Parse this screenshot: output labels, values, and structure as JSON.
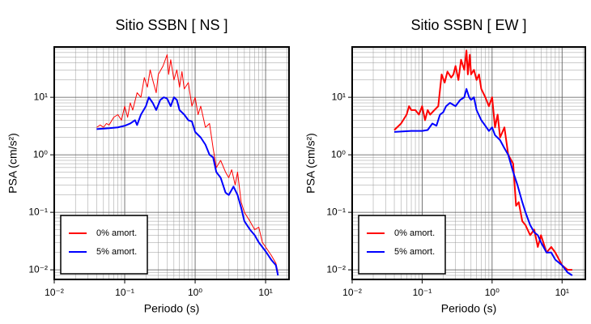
{
  "chart_data": [
    {
      "type": "line",
      "title": "Sitio SSBN [ NS ]",
      "x_label": "Periodo (s)",
      "y_label": "PSA (cm/s²)",
      "log_x": true,
      "log_y": true,
      "grid": true,
      "legend": "lower left",
      "xlim": [
        0.01,
        21.5
      ],
      "ylim": [
        0.0068,
        75
      ],
      "xticks": [
        {
          "value": 0.01,
          "label": "10⁻²"
        },
        {
          "value": 0.1,
          "label": "10⁻¹"
        },
        {
          "value": 1,
          "label": "10⁰"
        },
        {
          "value": 10,
          "label": "10¹"
        }
      ],
      "yticks": [
        {
          "value": 0.01,
          "label": "10⁻²"
        },
        {
          "value": 0.1,
          "label": "10⁻¹"
        },
        {
          "value": 1,
          "label": "10⁰"
        },
        {
          "value": 10,
          "label": "10¹"
        }
      ],
      "series": [
        {
          "name": "0% amort.",
          "color": "#ff0000",
          "line_width": 1,
          "x": [
            0.04,
            0.045,
            0.05,
            0.055,
            0.06,
            0.07,
            0.08,
            0.09,
            0.1,
            0.11,
            0.12,
            0.13,
            0.15,
            0.17,
            0.19,
            0.21,
            0.23,
            0.25,
            0.28,
            0.3,
            0.35,
            0.4,
            0.42,
            0.45,
            0.5,
            0.55,
            0.6,
            0.65,
            0.7,
            0.8,
            0.9,
            1.0,
            1.1,
            1.2,
            1.4,
            1.6,
            1.8,
            2.0,
            2.3,
            2.7,
            3.0,
            3.3,
            3.7,
            4.0,
            4.5,
            5.0,
            6,
            7,
            8,
            9,
            10,
            12,
            14,
            15
          ],
          "values": [
            3.0,
            3.3,
            3.0,
            3.5,
            3.3,
            4.5,
            5,
            4,
            7,
            4.5,
            8,
            6,
            12,
            10,
            22,
            15,
            30,
            20,
            12,
            25,
            35,
            55,
            25,
            45,
            20,
            30,
            15,
            28,
            14,
            18,
            7,
            10,
            5,
            7,
            3,
            3.5,
            1.3,
            0.6,
            0.8,
            0.5,
            0.4,
            0.55,
            0.3,
            0.5,
            0.15,
            0.1,
            0.07,
            0.05,
            0.055,
            0.03,
            0.025,
            0.018,
            0.013,
            0.009
          ]
        },
        {
          "name": "5% amort.",
          "color": "#0000ff",
          "line_width": 2,
          "x": [
            0.04,
            0.06,
            0.08,
            0.1,
            0.12,
            0.14,
            0.15,
            0.17,
            0.2,
            0.22,
            0.25,
            0.28,
            0.32,
            0.36,
            0.4,
            0.45,
            0.5,
            0.55,
            0.6,
            0.7,
            0.8,
            0.9,
            1.0,
            1.2,
            1.4,
            1.6,
            1.8,
            2.0,
            2.3,
            2.7,
            3.0,
            3.5,
            4,
            4.5,
            5,
            6,
            7,
            8,
            10,
            12,
            14,
            15
          ],
          "values": [
            2.8,
            2.9,
            3.0,
            3.2,
            3.5,
            4,
            3.3,
            5,
            7,
            10,
            8,
            6,
            9,
            10,
            9.5,
            7,
            10,
            9,
            6,
            5,
            4,
            3.8,
            2.5,
            2,
            1.5,
            1.0,
            0.9,
            0.5,
            0.4,
            0.22,
            0.2,
            0.28,
            0.2,
            0.12,
            0.07,
            0.05,
            0.04,
            0.03,
            0.021,
            0.015,
            0.012,
            0.008
          ]
        }
      ]
    },
    {
      "type": "line",
      "title": "Sitio SSBN [ EW ]",
      "x_label": "Periodo (s)",
      "y_label": "PSA (cm/s²)",
      "log_x": true,
      "log_y": true,
      "grid": true,
      "legend": "lower left",
      "xlim": [
        0.01,
        21.5
      ],
      "ylim": [
        0.0068,
        75
      ],
      "xticks": [
        {
          "value": 0.01,
          "label": "10⁻²"
        },
        {
          "value": 0.1,
          "label": "10⁻¹"
        },
        {
          "value": 1,
          "label": "10⁰"
        },
        {
          "value": 10,
          "label": "10¹"
        }
      ],
      "yticks": [
        {
          "value": 0.01,
          "label": "10⁻²"
        },
        {
          "value": 0.1,
          "label": "10⁻¹"
        },
        {
          "value": 1,
          "label": "10⁰"
        },
        {
          "value": 10,
          "label": "10¹"
        }
      ],
      "series": [
        {
          "name": "0% amort.",
          "color": "#ff0000",
          "line_width": 2,
          "x": [
            0.04,
            0.05,
            0.06,
            0.065,
            0.07,
            0.08,
            0.09,
            0.1,
            0.11,
            0.12,
            0.13,
            0.15,
            0.17,
            0.19,
            0.21,
            0.23,
            0.26,
            0.28,
            0.3,
            0.33,
            0.36,
            0.4,
            0.43,
            0.45,
            0.48,
            0.5,
            0.55,
            0.6,
            0.65,
            0.7,
            0.8,
            0.9,
            1.0,
            1.1,
            1.2,
            1.3,
            1.5,
            1.7,
            2,
            2.2,
            2.4,
            2.7,
            3,
            3.5,
            4,
            4.5,
            5,
            6,
            7,
            8,
            10,
            12,
            14
          ],
          "values": [
            2.7,
            3.5,
            5,
            7,
            6,
            6,
            5,
            7,
            4,
            6,
            5,
            6,
            7,
            25,
            18,
            28,
            22,
            25,
            35,
            20,
            45,
            30,
            65,
            25,
            55,
            25,
            30,
            20,
            25,
            14,
            10,
            7,
            10,
            3,
            5,
            2,
            3,
            1,
            0.7,
            0.13,
            0.15,
            0.07,
            0.06,
            0.04,
            0.05,
            0.025,
            0.04,
            0.02,
            0.025,
            0.02,
            0.012,
            0.01,
            0.01
          ]
        },
        {
          "name": "5% amort.",
          "color": "#0000ff",
          "line_width": 2,
          "x": [
            0.04,
            0.07,
            0.1,
            0.12,
            0.14,
            0.16,
            0.18,
            0.2,
            0.22,
            0.25,
            0.3,
            0.35,
            0.4,
            0.43,
            0.47,
            0.5,
            0.55,
            0.6,
            0.7,
            0.8,
            0.9,
            1.0,
            1.1,
            1.3,
            1.5,
            1.7,
            2,
            2.3,
            2.7,
            3,
            3.5,
            4,
            4.5,
            5,
            6,
            7,
            8,
            10,
            12,
            14
          ],
          "values": [
            2.5,
            2.6,
            2.6,
            2.7,
            3.5,
            3.2,
            5,
            5.5,
            7,
            8,
            7,
            9,
            10,
            14,
            10,
            9,
            10,
            6,
            4,
            3.2,
            2.6,
            3,
            2.2,
            1.8,
            1.3,
            1.0,
            0.5,
            0.3,
            0.15,
            0.1,
            0.06,
            0.045,
            0.04,
            0.03,
            0.02,
            0.02,
            0.015,
            0.012,
            0.009,
            0.008
          ]
        }
      ]
    }
  ]
}
